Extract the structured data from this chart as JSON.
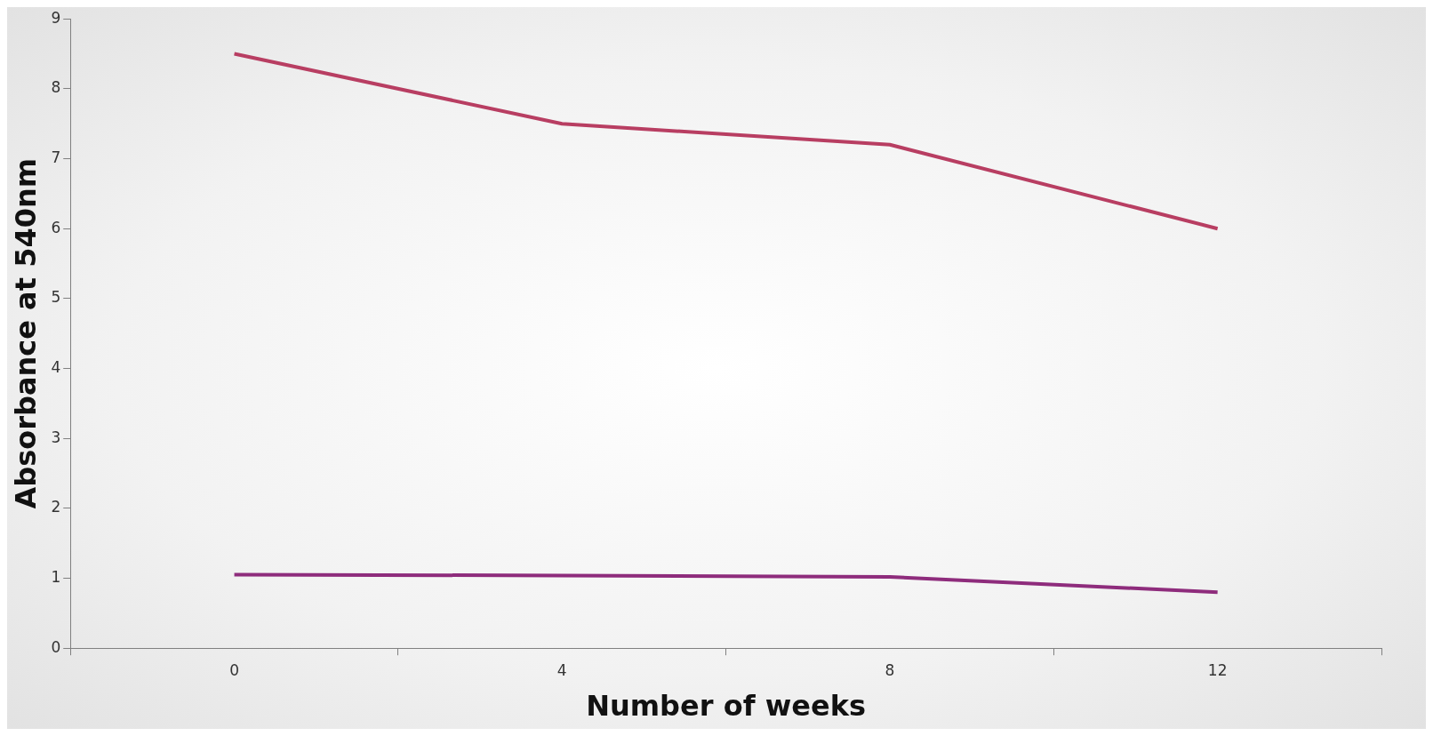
{
  "chart_data": {
    "type": "line",
    "xlabel": "Number of weeks",
    "ylabel": "Absorbance at 540nm",
    "categories": [
      "0",
      "4",
      "8",
      "12"
    ],
    "series": [
      {
        "color": "#b83e62",
        "values": [
          8.5,
          7.5,
          7.2,
          6.0
        ]
      },
      {
        "color": "#8e2c7c",
        "values": [
          1.05,
          1.04,
          1.02,
          0.8
        ]
      }
    ],
    "ylim": [
      0,
      9
    ],
    "yticks": [
      0,
      1,
      2,
      3,
      4,
      5,
      6,
      7,
      8,
      9
    ],
    "grid": false,
    "legend": false,
    "marker": "none",
    "line_style": "solid"
  }
}
